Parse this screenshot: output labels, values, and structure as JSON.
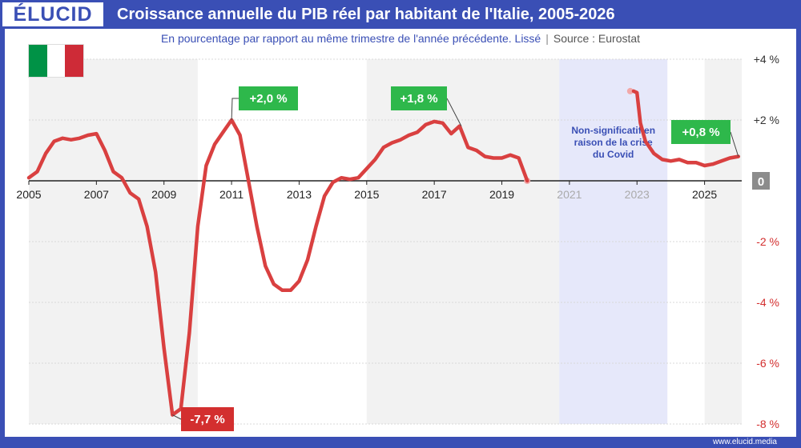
{
  "header": {
    "logo": "ÉLUCID",
    "title": "Croissance annuelle du PIB réel par habitant de l'Italie, 2005-2026",
    "subtitle": "En pourcentage par rapport au même trimestre de l'année précédente. Lissé",
    "separator": "|",
    "source": "Source : Eurostat"
  },
  "footer": {
    "url": "www.elucid.media"
  },
  "flag": {
    "colors": [
      "#009246",
      "#ffffff",
      "#ce2b37"
    ]
  },
  "colors": {
    "brand": "#3a4fb5",
    "line": "#d94040",
    "positive_label": "#2eb84b",
    "negative_label": "#d32f2f",
    "covid_band": "#e6e8fa"
  },
  "chart_data": {
    "type": "line",
    "title": "Croissance annuelle du PIB réel par habitant de l'Italie, 2005-2026",
    "xlim": [
      2005,
      2026.1
    ],
    "ylim": [
      -8,
      4
    ],
    "x_ticks": [
      {
        "value": 2005,
        "label": "2005"
      },
      {
        "value": 2007,
        "label": "2007"
      },
      {
        "value": 2009,
        "label": "2009"
      },
      {
        "value": 2011,
        "label": "2011"
      },
      {
        "value": 2013,
        "label": "2013"
      },
      {
        "value": 2015,
        "label": "2015"
      },
      {
        "value": 2017,
        "label": "2017"
      },
      {
        "value": 2019,
        "label": "2019"
      },
      {
        "value": 2021,
        "label": "2021"
      },
      {
        "value": 2023,
        "label": "2023"
      },
      {
        "value": 2025,
        "label": "2025"
      }
    ],
    "y_ticks": [
      {
        "value": 4,
        "label": "+4 %"
      },
      {
        "value": 2,
        "label": "+2 %"
      },
      {
        "value": 0,
        "label": "0"
      },
      {
        "value": -2,
        "label": "-2 %"
      },
      {
        "value": -4,
        "label": "-4 %"
      },
      {
        "value": -6,
        "label": "-6 %"
      },
      {
        "value": -8,
        "label": "-8 %"
      }
    ],
    "grid": true,
    "shaded_bands": [
      [
        2005,
        2010
      ],
      [
        2015,
        2020.7
      ],
      [
        2025,
        2026.1
      ]
    ],
    "covid_band": {
      "x": [
        2020.7,
        2023.9
      ],
      "label": [
        "Non-significatif en",
        "raison de la crise",
        "du Covid"
      ]
    },
    "series": [
      {
        "segments": [
          [
            [
              2005,
              0.1
            ],
            [
              2005.25,
              0.3
            ],
            [
              2005.5,
              0.9
            ],
            [
              2005.75,
              1.3
            ],
            [
              2006,
              1.4
            ],
            [
              2006.25,
              1.35
            ],
            [
              2006.5,
              1.4
            ],
            [
              2006.75,
              1.5
            ],
            [
              2007,
              1.55
            ],
            [
              2007.25,
              1.0
            ],
            [
              2007.5,
              0.3
            ],
            [
              2007.75,
              0.1
            ],
            [
              2008,
              -0.4
            ],
            [
              2008.25,
              -0.6
            ],
            [
              2008.5,
              -1.5
            ],
            [
              2008.75,
              -3.0
            ],
            [
              2009,
              -5.5
            ],
            [
              2009.25,
              -7.7
            ],
            [
              2009.5,
              -7.5
            ],
            [
              2009.75,
              -5.0
            ],
            [
              2010,
              -1.5
            ],
            [
              2010.25,
              0.5
            ],
            [
              2010.5,
              1.2
            ],
            [
              2010.75,
              1.6
            ],
            [
              2011,
              2.0
            ],
            [
              2011.25,
              1.5
            ],
            [
              2011.5,
              0.0
            ],
            [
              2011.75,
              -1.5
            ],
            [
              2012,
              -2.8
            ],
            [
              2012.25,
              -3.4
            ],
            [
              2012.5,
              -3.6
            ],
            [
              2012.75,
              -3.6
            ],
            [
              2013,
              -3.3
            ],
            [
              2013.25,
              -2.6
            ],
            [
              2013.5,
              -1.5
            ],
            [
              2013.75,
              -0.5
            ],
            [
              2014,
              -0.05
            ],
            [
              2014.25,
              0.1
            ],
            [
              2014.5,
              0.05
            ],
            [
              2014.75,
              0.1
            ],
            [
              2015,
              0.4
            ],
            [
              2015.25,
              0.7
            ],
            [
              2015.5,
              1.1
            ],
            [
              2015.75,
              1.25
            ],
            [
              2016,
              1.35
            ],
            [
              2016.25,
              1.5
            ],
            [
              2016.5,
              1.6
            ],
            [
              2016.75,
              1.85
            ],
            [
              2017,
              1.95
            ],
            [
              2017.25,
              1.9
            ],
            [
              2017.5,
              1.55
            ],
            [
              2017.75,
              1.8
            ],
            [
              2018,
              1.1
            ],
            [
              2018.25,
              1.0
            ],
            [
              2018.5,
              0.8
            ],
            [
              2018.75,
              0.75
            ],
            [
              2019,
              0.75
            ],
            [
              2019.25,
              0.85
            ],
            [
              2019.5,
              0.75
            ],
            [
              2019.75,
              0.0
            ]
          ],
          [
            [
              2022.9,
              2.95
            ],
            [
              2023,
              2.9
            ],
            [
              2023.1,
              1.9
            ],
            [
              2023.25,
              1.3
            ],
            [
              2023.5,
              0.9
            ],
            [
              2023.75,
              0.7
            ],
            [
              2024,
              0.65
            ],
            [
              2024.25,
              0.7
            ],
            [
              2024.5,
              0.6
            ],
            [
              2024.75,
              0.6
            ],
            [
              2025,
              0.5
            ],
            [
              2025.25,
              0.55
            ],
            [
              2025.5,
              0.65
            ],
            [
              2025.75,
              0.75
            ],
            [
              2026,
              0.8
            ]
          ]
        ],
        "faded_points": [
          [
            2019.75,
            0.0
          ],
          [
            2022.8,
            2.95
          ]
        ]
      }
    ],
    "annotations": [
      {
        "text": "+2,0 %",
        "x": 2011,
        "y": 2.0,
        "type": "positive"
      },
      {
        "text": "+1,8 %",
        "x": 2017.8,
        "y": 1.8,
        "type": "positive"
      },
      {
        "text": "-7,7 %",
        "x": 2009.25,
        "y": -7.7,
        "type": "negative"
      },
      {
        "text": "+0,8 %",
        "x": 2026,
        "y": 0.8,
        "type": "positive"
      }
    ]
  }
}
